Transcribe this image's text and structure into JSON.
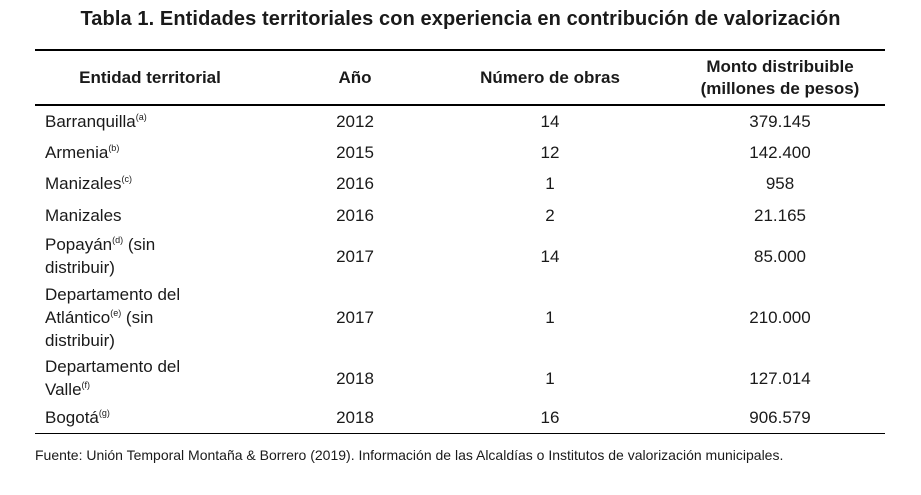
{
  "caption": "Tabla 1. Entidades territoriales con experiencia en contribución de valorización",
  "headers": {
    "entidad": "Entidad territorial",
    "ano": "Año",
    "obras": "Número de obras",
    "monto_line1": "Monto distribuible",
    "monto_line2": "(millones de pesos)"
  },
  "rows": [
    {
      "line1": "Barranquilla",
      "sup": "(a)",
      "line1_after": "",
      "line2": "",
      "line3": "",
      "ano": "2012",
      "obras": "14",
      "monto": "379.145"
    },
    {
      "line1": "Armenia",
      "sup": "(b)",
      "line1_after": "",
      "line2": "",
      "line3": "",
      "ano": "2015",
      "obras": "12",
      "monto": "142.400"
    },
    {
      "line1": "Manizales",
      "sup": "(c)",
      "line1_after": "",
      "line2": "",
      "line3": "",
      "ano": "2016",
      "obras": "1",
      "monto": "958"
    },
    {
      "line1": "Manizales",
      "sup": "",
      "line1_after": "",
      "line2": "",
      "line3": "",
      "ano": "2016",
      "obras": "2",
      "monto": "21.165"
    },
    {
      "line1": "Popayán",
      "sup": "(d)",
      "line1_after": " (sin",
      "line2": "distribuir)",
      "line3": "",
      "ano": "2017",
      "obras": "14",
      "monto": "85.000"
    },
    {
      "line1": "Departamento del",
      "sup": "",
      "line1_after": "",
      "line2_pre": "Atlántico",
      "line2_sup": "(e)",
      "line2_after": " (sin",
      "line3": "distribuir)",
      "ano": "2017",
      "obras": "1",
      "monto": "210.000"
    },
    {
      "line1": "Departamento del",
      "sup": "",
      "line1_after": "",
      "line2_pre": "Valle",
      "line2_sup": "(f)",
      "line2_after": "",
      "line3": "",
      "ano": "2018",
      "obras": "1",
      "monto": "127.014"
    },
    {
      "line1": "Bogotá",
      "sup": "(g)",
      "line1_after": "",
      "line2": "",
      "line3": "",
      "ano": "2018",
      "obras": "16",
      "monto": "906.579"
    }
  ],
  "source": "Fuente: Unión Temporal Montaña & Borrero (2019). Información de las Alcaldías o Institutos de valorización municipales."
}
